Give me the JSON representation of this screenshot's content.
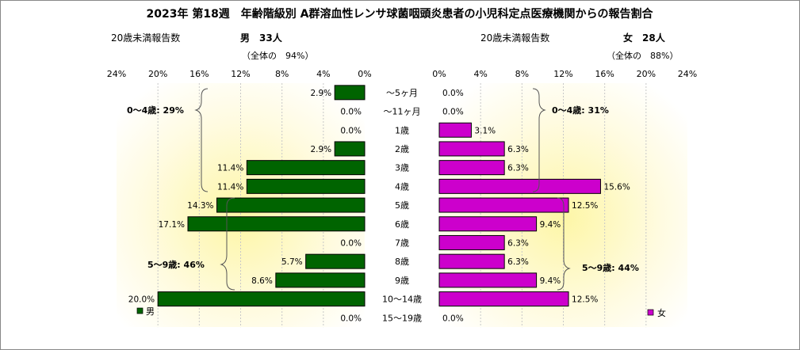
{
  "title": "2023年 第18週　年齢階級別 A群溶血性レンサ球菌咽頭炎患者の小児科定点医療機関からの報告割合",
  "male_panel": {
    "report_label": "20歳未満報告数",
    "count_label": "男　33人",
    "share_label": "（全体の　94%）",
    "legend": "男"
  },
  "female_panel": {
    "report_label": "20歳未満報告数",
    "count_label": "女　28人",
    "share_label": "（全体の　88%）",
    "legend": "女"
  },
  "chart_data": {
    "type": "bar",
    "orientation": "horizontal-butterfly",
    "categories": [
      "～5ヶ月",
      "～11ヶ月",
      "1歳",
      "2歳",
      "3歳",
      "4歳",
      "5歳",
      "6歳",
      "7歳",
      "8歳",
      "9歳",
      "10～14歳",
      "15～19歳"
    ],
    "axis_ticks": [
      "0%",
      "4%",
      "8%",
      "12%",
      "16%",
      "20%",
      "24%"
    ],
    "xlim": [
      0,
      24
    ],
    "series": [
      {
        "name": "男",
        "color": "#006400",
        "values": [
          2.9,
          0.0,
          0.0,
          2.9,
          11.4,
          11.4,
          14.3,
          17.1,
          0.0,
          5.7,
          8.6,
          20.0,
          0.0
        ],
        "labels": [
          "2.9%",
          "0.0%",
          "0.0%",
          "2.9%",
          "11.4%",
          "11.4%",
          "14.3%",
          "17.1%",
          "0.0%",
          "5.7%",
          "8.6%",
          "20.0%",
          "0.0%"
        ]
      },
      {
        "name": "女",
        "color": "#cc00cc",
        "values": [
          0.0,
          0.0,
          3.1,
          6.3,
          6.3,
          15.6,
          12.5,
          9.4,
          6.3,
          6.3,
          9.4,
          12.5,
          0.0
        ],
        "labels": [
          "0.0%",
          "0.0%",
          "3.1%",
          "6.3%",
          "6.3%",
          "15.6%",
          "12.5%",
          "9.4%",
          "6.3%",
          "6.3%",
          "9.4%",
          "12.5%",
          "0.0%"
        ]
      }
    ],
    "annotations": {
      "male_0_4": "0～4歳: 29%",
      "male_5_9": "5～9歳: 46%",
      "female_0_4": "0～4歳: 31%",
      "female_5_9": "5～9歳: 44%"
    },
    "grid": true,
    "legend_placement": "bottom"
  }
}
